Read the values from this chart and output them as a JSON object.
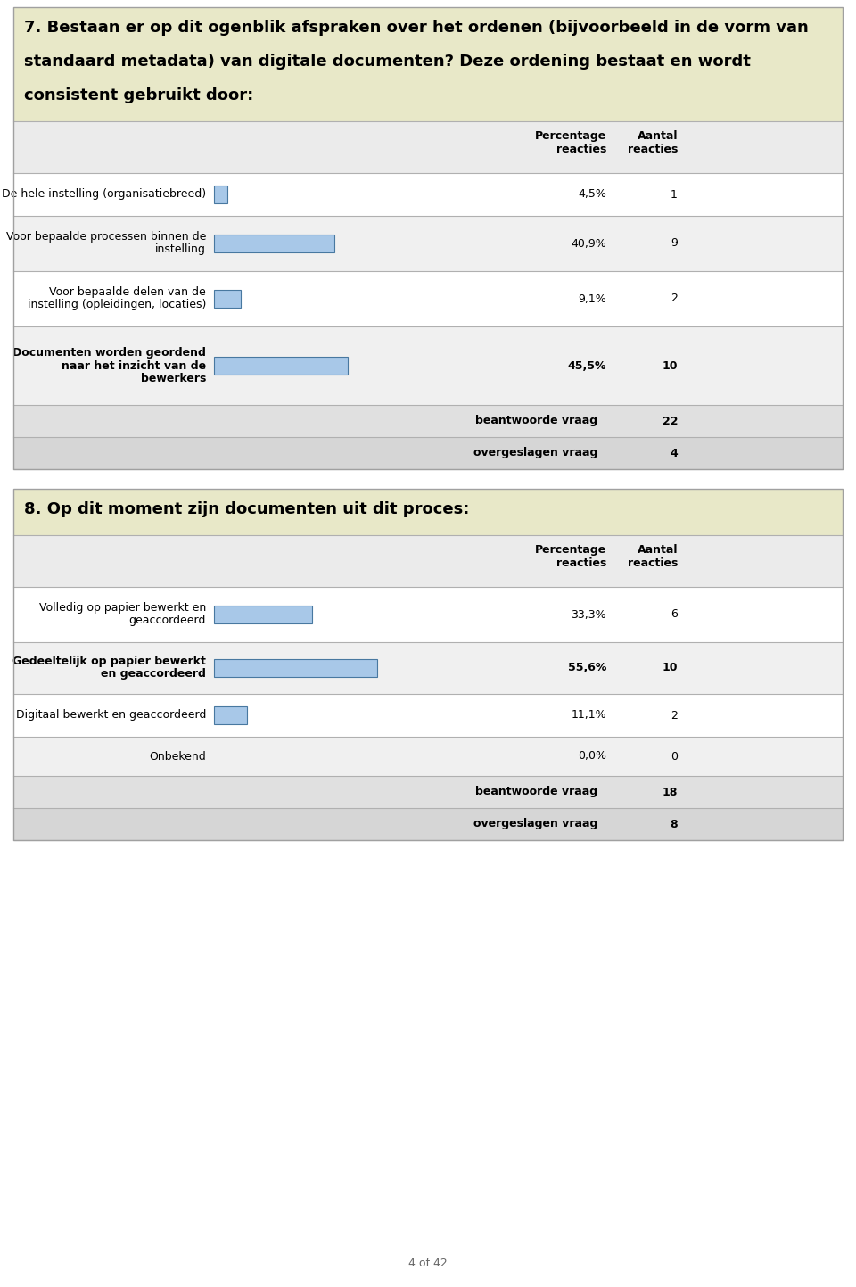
{
  "q7_title_lines": [
    "7. Bestaan er op dit ogenblik afspraken over het ordenen (bijvoorbeeld in de vorm van",
    "standaard metadata) van digitale documenten? Deze ordening bestaat en wordt",
    "consistent gebruikt door:"
  ],
  "q7_header_bg": "#e8e8c8",
  "q7_rows": [
    {
      "label": "De hele instelling (organisatiebreed)",
      "label2": "",
      "label3": "",
      "bold": false,
      "pct": "4,5%",
      "n": "1",
      "bar_val": 4.5
    },
    {
      "label": "Voor bepaalde processen binnen de",
      "label2": "instelling",
      "label3": "",
      "bold": false,
      "pct": "40,9%",
      "n": "9",
      "bar_val": 40.9
    },
    {
      "label": "Voor bepaalde delen van de",
      "label2": "instelling (opleidingen, locaties)",
      "label3": "",
      "bold": false,
      "pct": "9,1%",
      "n": "2",
      "bar_val": 9.1
    },
    {
      "label": "Documenten worden geordend",
      "label2": "naar het inzicht van de",
      "label3": "bewerkers",
      "bold": true,
      "pct": "45,5%",
      "n": "10",
      "bar_val": 45.5
    }
  ],
  "q7_footer": [
    {
      "label": "beantwoorde vraag",
      "value": "22"
    },
    {
      "label": "overgeslagen vraag",
      "value": "4"
    }
  ],
  "q8_title_lines": [
    "8. Op dit moment zijn documenten uit dit proces:"
  ],
  "q8_header_bg": "#e8e8c8",
  "q8_rows": [
    {
      "label": "Volledig op papier bewerkt en",
      "label2": "geaccordeerd",
      "label3": "",
      "bold": false,
      "pct": "33,3%",
      "n": "6",
      "bar_val": 33.3
    },
    {
      "label": "Gedeeltelijk op papier bewerkt",
      "label2": "en geaccordeerd",
      "label3": "",
      "bold": true,
      "pct": "55,6%",
      "n": "10",
      "bar_val": 55.6
    },
    {
      "label": "Digitaal bewerkt en geaccordeerd",
      "label2": "",
      "label3": "",
      "bold": false,
      "pct": "11,1%",
      "n": "2",
      "bar_val": 11.1
    },
    {
      "label": "Onbekend",
      "label2": "",
      "label3": "",
      "bold": false,
      "pct": "0,0%",
      "n": "0",
      "bar_val": 0.0
    }
  ],
  "q8_footer": [
    {
      "label": "beantwoorde vraag",
      "value": "18"
    },
    {
      "label": "overgeslagen vraag",
      "value": "8"
    }
  ],
  "col_header_pct": "Percentage\nreacties",
  "col_header_n": "Aantal\nreacties",
  "bar_color_face": "#a8c8e8",
  "bar_color_edge": "#4878a0",
  "page_footer": "4 of 42"
}
